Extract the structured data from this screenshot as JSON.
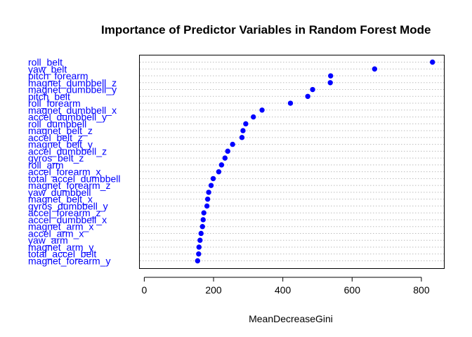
{
  "chart_data": {
    "type": "scatter",
    "subtype": "dotchart",
    "title": "Importance of Predictor Variables in Random Forest Mode",
    "xlabel": "MeanDecreaseGini",
    "ylabel": "",
    "xlim": [
      -15,
      865
    ],
    "xticks": [
      0,
      200,
      400,
      600,
      800
    ],
    "grid": "horizontal-dotted",
    "label_color": "#0000ff",
    "point_color": "#0000ff",
    "categories": [
      "roll_belt",
      "yaw_belt",
      "pitch_forearm",
      "magnet_dumbbell_z",
      "magnet_dumbbell_y",
      "pitch_belt",
      "roll_forearm",
      "magnet_dumbbell_x",
      "accel_dumbbell_y",
      "roll_dumbbell",
      "magnet_belt_z",
      "accel_belt_z",
      "magnet_belt_y",
      "accel_dumbbell_z",
      "gyros_belt_z",
      "roll_arm",
      "accel_forearm_x",
      "total_accel_dumbbell",
      "magnet_forearm_z",
      "yaw_dumbbell",
      "magnet_belt_x",
      "gyros_dumbbell_y",
      "accel_forearm_z",
      "accel_dumbbell_x",
      "magnet_arm_x",
      "accel_arm_x",
      "yaw_arm",
      "magnet_arm_y",
      "total_accel_belt",
      "magnet_forearm_y"
    ],
    "values": [
      832,
      665,
      538,
      537,
      486,
      472,
      422,
      340,
      315,
      293,
      285,
      282,
      255,
      241,
      233,
      223,
      215,
      199,
      193,
      186,
      183,
      181,
      172,
      170,
      168,
      164,
      161,
      158,
      157,
      154
    ]
  }
}
